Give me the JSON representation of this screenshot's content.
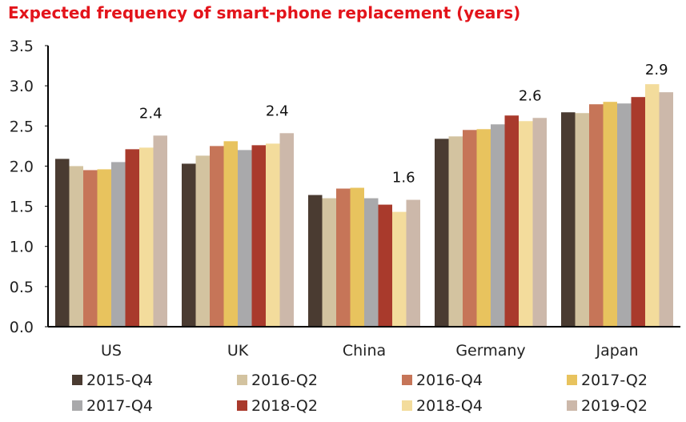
{
  "chart_data": {
    "type": "bar",
    "title": "Expected frequency of smart-phone replacement (years)",
    "xlabel": "",
    "ylabel": "",
    "ylim": [
      0,
      3.5
    ],
    "yticks": [
      "0.0",
      "0.5",
      "1.0",
      "1.5",
      "2.0",
      "2.5",
      "3.0",
      "3.5"
    ],
    "grid": false,
    "legend_position": "bottom",
    "categories": [
      "US",
      "UK",
      "China",
      "Germany",
      "Japan"
    ],
    "series": [
      {
        "name": "2015-Q4",
        "color": "#4a3b31",
        "values": [
          2.09,
          2.03,
          1.64,
          2.34,
          2.67
        ]
      },
      {
        "name": "2016-Q2",
        "color": "#d3c3a0",
        "values": [
          2.0,
          2.13,
          1.6,
          2.37,
          2.66
        ]
      },
      {
        "name": "2016-Q4",
        "color": "#c67558",
        "values": [
          1.95,
          2.25,
          1.72,
          2.45,
          2.77
        ]
      },
      {
        "name": "2017-Q2",
        "color": "#e8c35e",
        "values": [
          1.96,
          2.31,
          1.73,
          2.46,
          2.8
        ]
      },
      {
        "name": "2017-Q4",
        "color": "#a9a9ab",
        "values": [
          2.05,
          2.2,
          1.6,
          2.52,
          2.78
        ]
      },
      {
        "name": "2018-Q2",
        "color": "#a93a2c",
        "values": [
          2.21,
          2.26,
          1.52,
          2.63,
          2.86
        ]
      },
      {
        "name": "2018-Q4",
        "color": "#f3dc9c",
        "values": [
          2.23,
          2.28,
          1.43,
          2.56,
          3.02
        ]
      },
      {
        "name": "2019-Q2",
        "color": "#ccb8aa",
        "values": [
          2.38,
          2.41,
          1.58,
          2.6,
          2.92
        ]
      }
    ],
    "data_labels": [
      "2.4",
      "2.4",
      "1.6",
      "2.6",
      "2.9"
    ]
  }
}
